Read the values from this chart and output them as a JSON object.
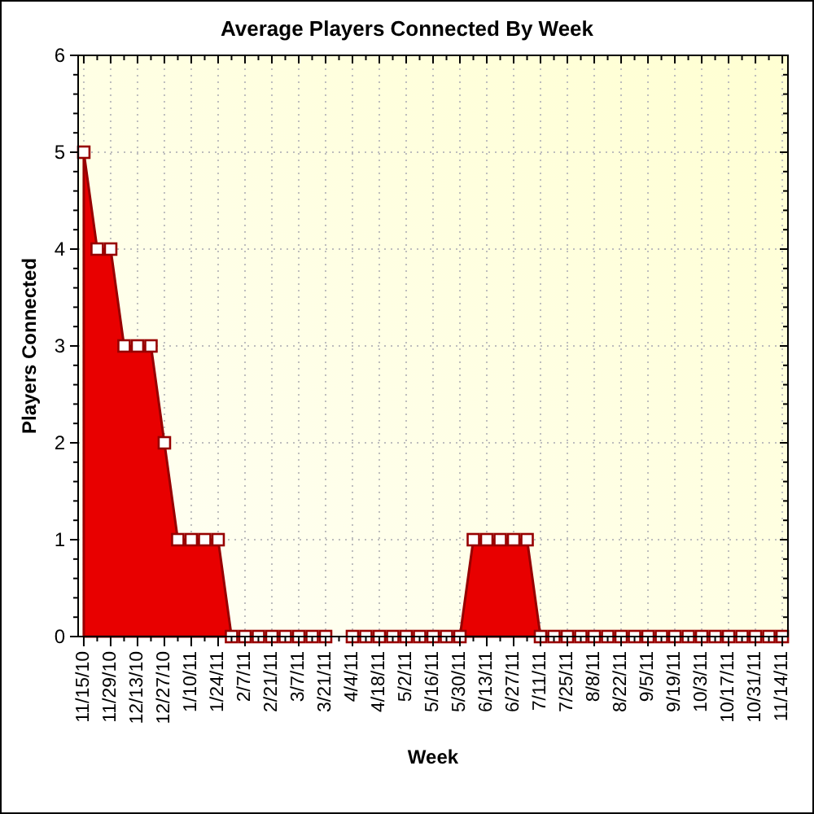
{
  "chart_data": {
    "type": "area",
    "title": "Average Players Connected By Week",
    "xlabel": "Week",
    "ylabel": "Players Connected",
    "categories": [
      "11/15/10",
      null,
      "11/29/10",
      null,
      "12/13/10",
      null,
      "12/27/10",
      null,
      "1/10/11",
      null,
      "1/24/11",
      null,
      "2/7/11",
      null,
      "2/21/11",
      null,
      "3/7/11",
      null,
      "3/21/11",
      null,
      "4/4/11",
      null,
      "4/18/11",
      null,
      "5/2/11",
      null,
      "5/16/11",
      null,
      "5/30/11",
      null,
      "6/13/11",
      null,
      "6/27/11",
      null,
      "7/11/11",
      null,
      "7/25/11",
      null,
      "8/8/11",
      null,
      "8/22/11",
      null,
      "9/5/11",
      null,
      "9/19/11",
      null,
      "10/3/11",
      null,
      "10/17/11",
      null,
      "10/31/11",
      null,
      "11/14/11"
    ],
    "values": [
      5,
      4,
      4,
      3,
      3,
      3,
      2,
      1,
      1,
      1,
      1,
      0,
      0,
      0,
      0,
      0,
      0,
      0,
      0,
      null,
      0,
      0,
      0,
      0,
      0,
      0,
      0,
      0,
      0,
      1,
      1,
      1,
      1,
      1,
      0,
      0,
      0,
      0,
      0,
      0,
      0,
      0,
      0,
      0,
      0,
      0,
      0,
      0,
      0,
      0,
      0,
      0,
      0
    ],
    "color": "#e80000",
    "marker": "square",
    "grid": true,
    "ylim": [
      0,
      6
    ],
    "yticks": [
      0,
      {
        "value": 0.2,
        "label": null
      },
      {
        "value": 0.4,
        "label": null
      },
      {
        "value": 0.6,
        "label": null
      },
      {
        "value": 0.8,
        "label": null
      },
      1,
      {
        "value": 1.2,
        "label": null
      },
      {
        "value": 1.4,
        "label": null
      },
      {
        "value": 1.6,
        "label": null
      },
      {
        "value": 1.8,
        "label": null
      },
      2,
      {
        "value": 2.2,
        "label": null
      },
      {
        "value": 2.4,
        "label": null
      },
      {
        "value": 2.6,
        "label": null
      },
      {
        "value": 2.8,
        "label": null
      },
      3,
      {
        "value": 3.2,
        "label": null
      },
      {
        "value": 3.4,
        "label": null
      },
      {
        "value": 3.6,
        "label": null
      },
      {
        "value": 3.8,
        "label": null
      },
      4,
      {
        "value": 4.2,
        "label": null
      },
      {
        "value": 4.4,
        "label": null
      },
      {
        "value": 4.6,
        "label": null
      },
      {
        "value": 4.8,
        "label": null
      },
      5,
      {
        "value": 5.2,
        "label": null
      },
      {
        "value": 5.4,
        "label": null
      },
      {
        "value": 5.6,
        "label": null
      },
      {
        "value": 5.8,
        "label": null
      },
      6
    ]
  }
}
